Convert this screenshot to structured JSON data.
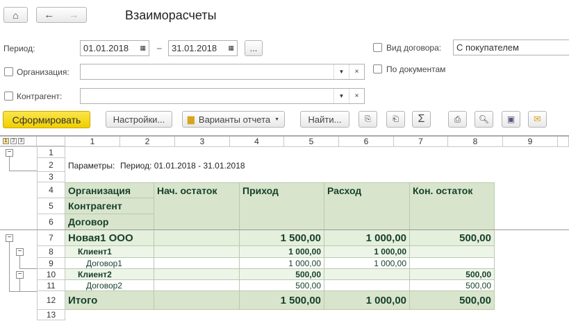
{
  "window": {
    "title": "Взаиморасчеты"
  },
  "nav": {
    "home": "home-icon",
    "back": "arrow-left-icon",
    "forward": "arrow-right-icon"
  },
  "filters": {
    "period_label": "Период:",
    "date_from": "01.01.2018",
    "dash": "–",
    "date_to": "31.01.2018",
    "select_period": "...",
    "org_label": "Организация:",
    "org_value": "",
    "contractor_label": "Контрагент:",
    "contractor_value": "",
    "contract_type_label": "Вид договора:",
    "contract_type_value": "С покупателем",
    "contract_type_checked": false,
    "by_documents_label": "По документам",
    "by_documents_checked": false,
    "org_checked": false,
    "contractor_checked": false
  },
  "toolbar": {
    "generate": "Сформировать",
    "settings": "Настройки...",
    "variants": "Варианты отчета",
    "find": "Найти...",
    "icons": [
      "copy-icon",
      "paste-icon",
      "sum-icon",
      "print-icon",
      "preview-icon",
      "save-icon",
      "mail-icon"
    ]
  },
  "grid": {
    "levels": [
      "1",
      "2",
      "3"
    ],
    "columns": [
      "1",
      "2",
      "3",
      "4",
      "5",
      "6",
      "7",
      "8",
      "9"
    ],
    "rows": [
      "1",
      "2",
      "3",
      "4",
      "5",
      "6",
      "7",
      "8",
      "9",
      "10",
      "11",
      "12",
      "13"
    ],
    "params_label": "Параметры:",
    "params_value": "Период: 01.01.2018 - 31.01.2018",
    "headers": {
      "org": "Организация",
      "contractor": "Контрагент",
      "contract": "Договор",
      "start": "Нач. остаток",
      "income": "Приход",
      "expense": "Расход",
      "end": "Кон. остаток"
    },
    "data": [
      {
        "name": "Новая1 ООО",
        "start": "",
        "income": "1 500,00",
        "expense": "1 000,00",
        "end": "500,00"
      },
      {
        "name": "Клиент1",
        "start": "",
        "income": "1 000,00",
        "expense": "1 000,00",
        "end": ""
      },
      {
        "name": "Договор1",
        "start": "",
        "income": "1 000,00",
        "expense": "1 000,00",
        "end": ""
      },
      {
        "name": "Клиент2",
        "start": "",
        "income": "500,00",
        "expense": "",
        "end": "500,00"
      },
      {
        "name": "Договор2",
        "start": "",
        "income": "500,00",
        "expense": "",
        "end": "500,00"
      },
      {
        "name": "Итого",
        "start": "",
        "income": "1 500,00",
        "expense": "1 000,00",
        "end": "500,00"
      }
    ]
  },
  "colors": {
    "accent": "#f5d800",
    "header": "#d8e5cc",
    "text": "#17402a"
  }
}
